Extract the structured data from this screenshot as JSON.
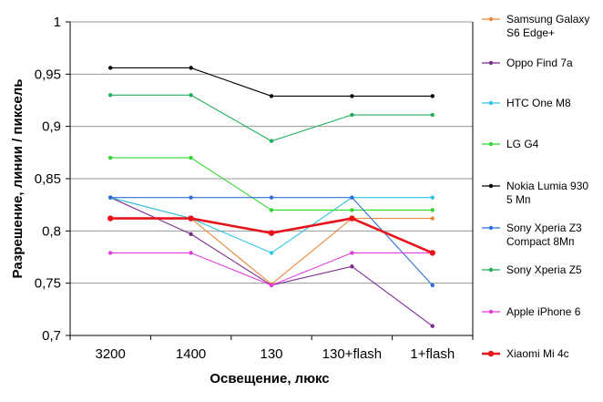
{
  "chart_data": {
    "type": "line",
    "xlabel": "Освещение,  люкс",
    "ylabel": "Разрешение,  линии / пиксель",
    "categories": [
      "3200",
      "1400",
      "130",
      "130+flash",
      "1+flash"
    ],
    "ylim": [
      0.7,
      1.0
    ],
    "yticks": [
      1,
      0.95,
      0.9,
      0.85,
      0.8,
      0.75,
      0.7
    ],
    "ytick_labels": [
      "1",
      "0,95",
      "0,9",
      "0,85",
      "0,8",
      "0,75",
      "0,7"
    ],
    "grid": "horizontal",
    "legend_position": "right",
    "series": [
      {
        "name": "Samsung Galaxy S6 Edge+",
        "name_lines": [
          "Samsung Galaxy",
          "S6 Edge+"
        ],
        "color": "#E8883A",
        "values": [
          0.832,
          0.812,
          0.749,
          0.812,
          0.812
        ]
      },
      {
        "name": "Oppo Find 7a",
        "name_lines": [
          "Oppo Find 7a"
        ],
        "color": "#7B2C8C",
        "values": [
          0.832,
          0.797,
          0.748,
          0.766,
          0.709
        ]
      },
      {
        "name": "HTC One M8",
        "name_lines": [
          "HTC One M8"
        ],
        "color": "#2EC4E6",
        "values": [
          0.832,
          0.812,
          0.779,
          0.832,
          0.832
        ]
      },
      {
        "name": "LG G4",
        "name_lines": [
          "LG G4"
        ],
        "color": "#33D633",
        "values": [
          0.87,
          0.87,
          0.82,
          0.82,
          0.82
        ]
      },
      {
        "name": "Nokia Lumia 930 5 Мп",
        "name_lines": [
          "Nokia Lumia 930",
          "5 Мп"
        ],
        "color": "#000000",
        "values": [
          0.956,
          0.956,
          0.929,
          0.929,
          0.929
        ]
      },
      {
        "name": "Sony Xperia Z3 Compact 8Мп",
        "name_lines": [
          "Sony Xperia Z3",
          "Compact 8Мп"
        ],
        "color": "#2E6FD6",
        "values": [
          0.832,
          0.832,
          0.832,
          0.832,
          0.748
        ]
      },
      {
        "name": "Sony Xperia Z5",
        "name_lines": [
          "Sony Xperia Z5"
        ],
        "color": "#1FAE5B",
        "values": [
          0.93,
          0.93,
          0.886,
          0.911,
          0.911
        ]
      },
      {
        "name": "Apple iPhone 6",
        "name_lines": [
          "Apple iPhone 6"
        ],
        "color": "#E23BE0",
        "values": [
          0.779,
          0.779,
          0.748,
          0.779,
          0.779
        ]
      },
      {
        "name": "Xiaomi Mi 4c",
        "name_lines": [
          "Xiaomi Mi 4c"
        ],
        "color": "#E8141C",
        "values": [
          0.812,
          0.812,
          0.798,
          0.812,
          0.779
        ],
        "bold": true
      }
    ]
  }
}
